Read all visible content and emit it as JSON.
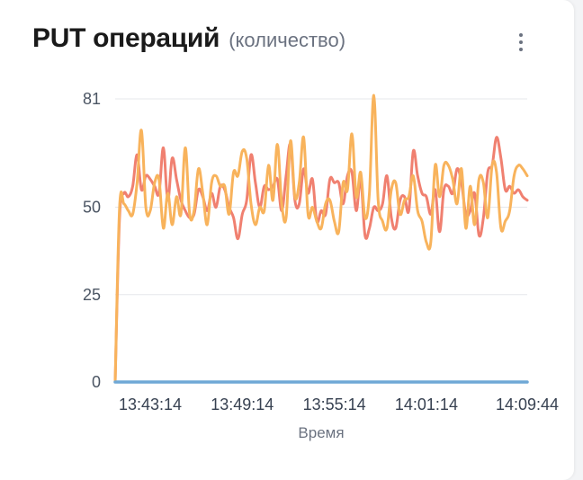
{
  "card": {
    "title": "PUT операций",
    "subtitle": "(количество)",
    "menu_icon": "more-vertical-icon"
  },
  "chart_data": {
    "type": "line",
    "xlabel": "Время",
    "ylabel": "",
    "ylim": [
      0,
      81
    ],
    "yticks": [
      0,
      25,
      50,
      81
    ],
    "x_tick_labels": [
      "13:43:14",
      "13:49:14",
      "13:55:14",
      "14:01:14",
      "14:09:44"
    ],
    "x_tick_index": [
      8,
      29,
      50,
      71,
      94
    ],
    "grid": true,
    "legend": "none",
    "series": [
      {
        "color": "#f08070",
        "values": [
          0,
          47,
          54,
          53,
          56,
          65,
          55,
          59,
          58,
          56,
          54,
          67,
          52,
          64,
          58,
          52,
          49,
          47,
          48,
          55,
          53,
          49,
          54,
          50,
          56,
          55,
          50,
          47,
          41,
          48,
          52,
          65,
          57,
          50,
          56,
          55,
          56,
          58,
          49,
          59,
          68,
          52,
          51,
          61,
          54,
          58,
          46,
          49,
          48,
          58,
          57,
          57,
          51,
          59,
          60,
          49,
          58,
          42,
          44,
          50,
          49,
          51,
          59,
          47,
          44,
          52,
          53,
          49,
          66,
          59,
          54,
          53,
          48,
          55,
          43,
          55,
          56,
          54,
          61,
          57,
          48,
          49,
          54,
          42,
          47,
          60,
          62,
          70,
          64,
          55,
          56,
          54,
          55,
          53,
          52
        ]
      },
      {
        "color": "#f8b35c",
        "values": [
          0,
          50,
          51,
          49,
          48,
          57,
          72,
          50,
          49,
          57,
          58,
          44,
          54,
          45,
          53,
          48,
          67,
          48,
          49,
          61,
          54,
          45,
          57,
          59,
          56,
          56,
          48,
          60,
          59,
          66,
          64,
          51,
          45,
          50,
          49,
          62,
          52,
          68,
          51,
          47,
          69,
          53,
          57,
          70,
          48,
          50,
          46,
          44,
          51,
          52,
          46,
          43,
          57,
          55,
          71,
          53,
          60,
          47,
          54,
          82,
          52,
          46,
          44,
          55,
          57,
          48,
          52,
          53,
          59,
          49,
          46,
          40,
          40,
          62,
          53,
          62,
          62,
          58,
          51,
          61,
          44,
          56,
          45,
          58,
          57,
          47,
          62,
          60,
          44,
          46,
          49,
          59,
          62,
          61,
          59
        ]
      },
      {
        "color": "#6fa8d6",
        "values": [
          0,
          0,
          0,
          0,
          0,
          0,
          0,
          0,
          0,
          0,
          0,
          0,
          0,
          0,
          0,
          0,
          0,
          0,
          0,
          0,
          0,
          0,
          0,
          0,
          0,
          0,
          0,
          0,
          0,
          0,
          0,
          0,
          0,
          0,
          0,
          0,
          0,
          0,
          0,
          0,
          0,
          0,
          0,
          0,
          0,
          0,
          0,
          0,
          0,
          0,
          0,
          0,
          0,
          0,
          0,
          0,
          0,
          0,
          0,
          0,
          0,
          0,
          0,
          0,
          0,
          0,
          0,
          0,
          0,
          0,
          0,
          0,
          0,
          0,
          0,
          0,
          0,
          0,
          0,
          0,
          0,
          0,
          0,
          0,
          0,
          0,
          0,
          0,
          0,
          0,
          0,
          0,
          0,
          0,
          0
        ]
      }
    ]
  }
}
